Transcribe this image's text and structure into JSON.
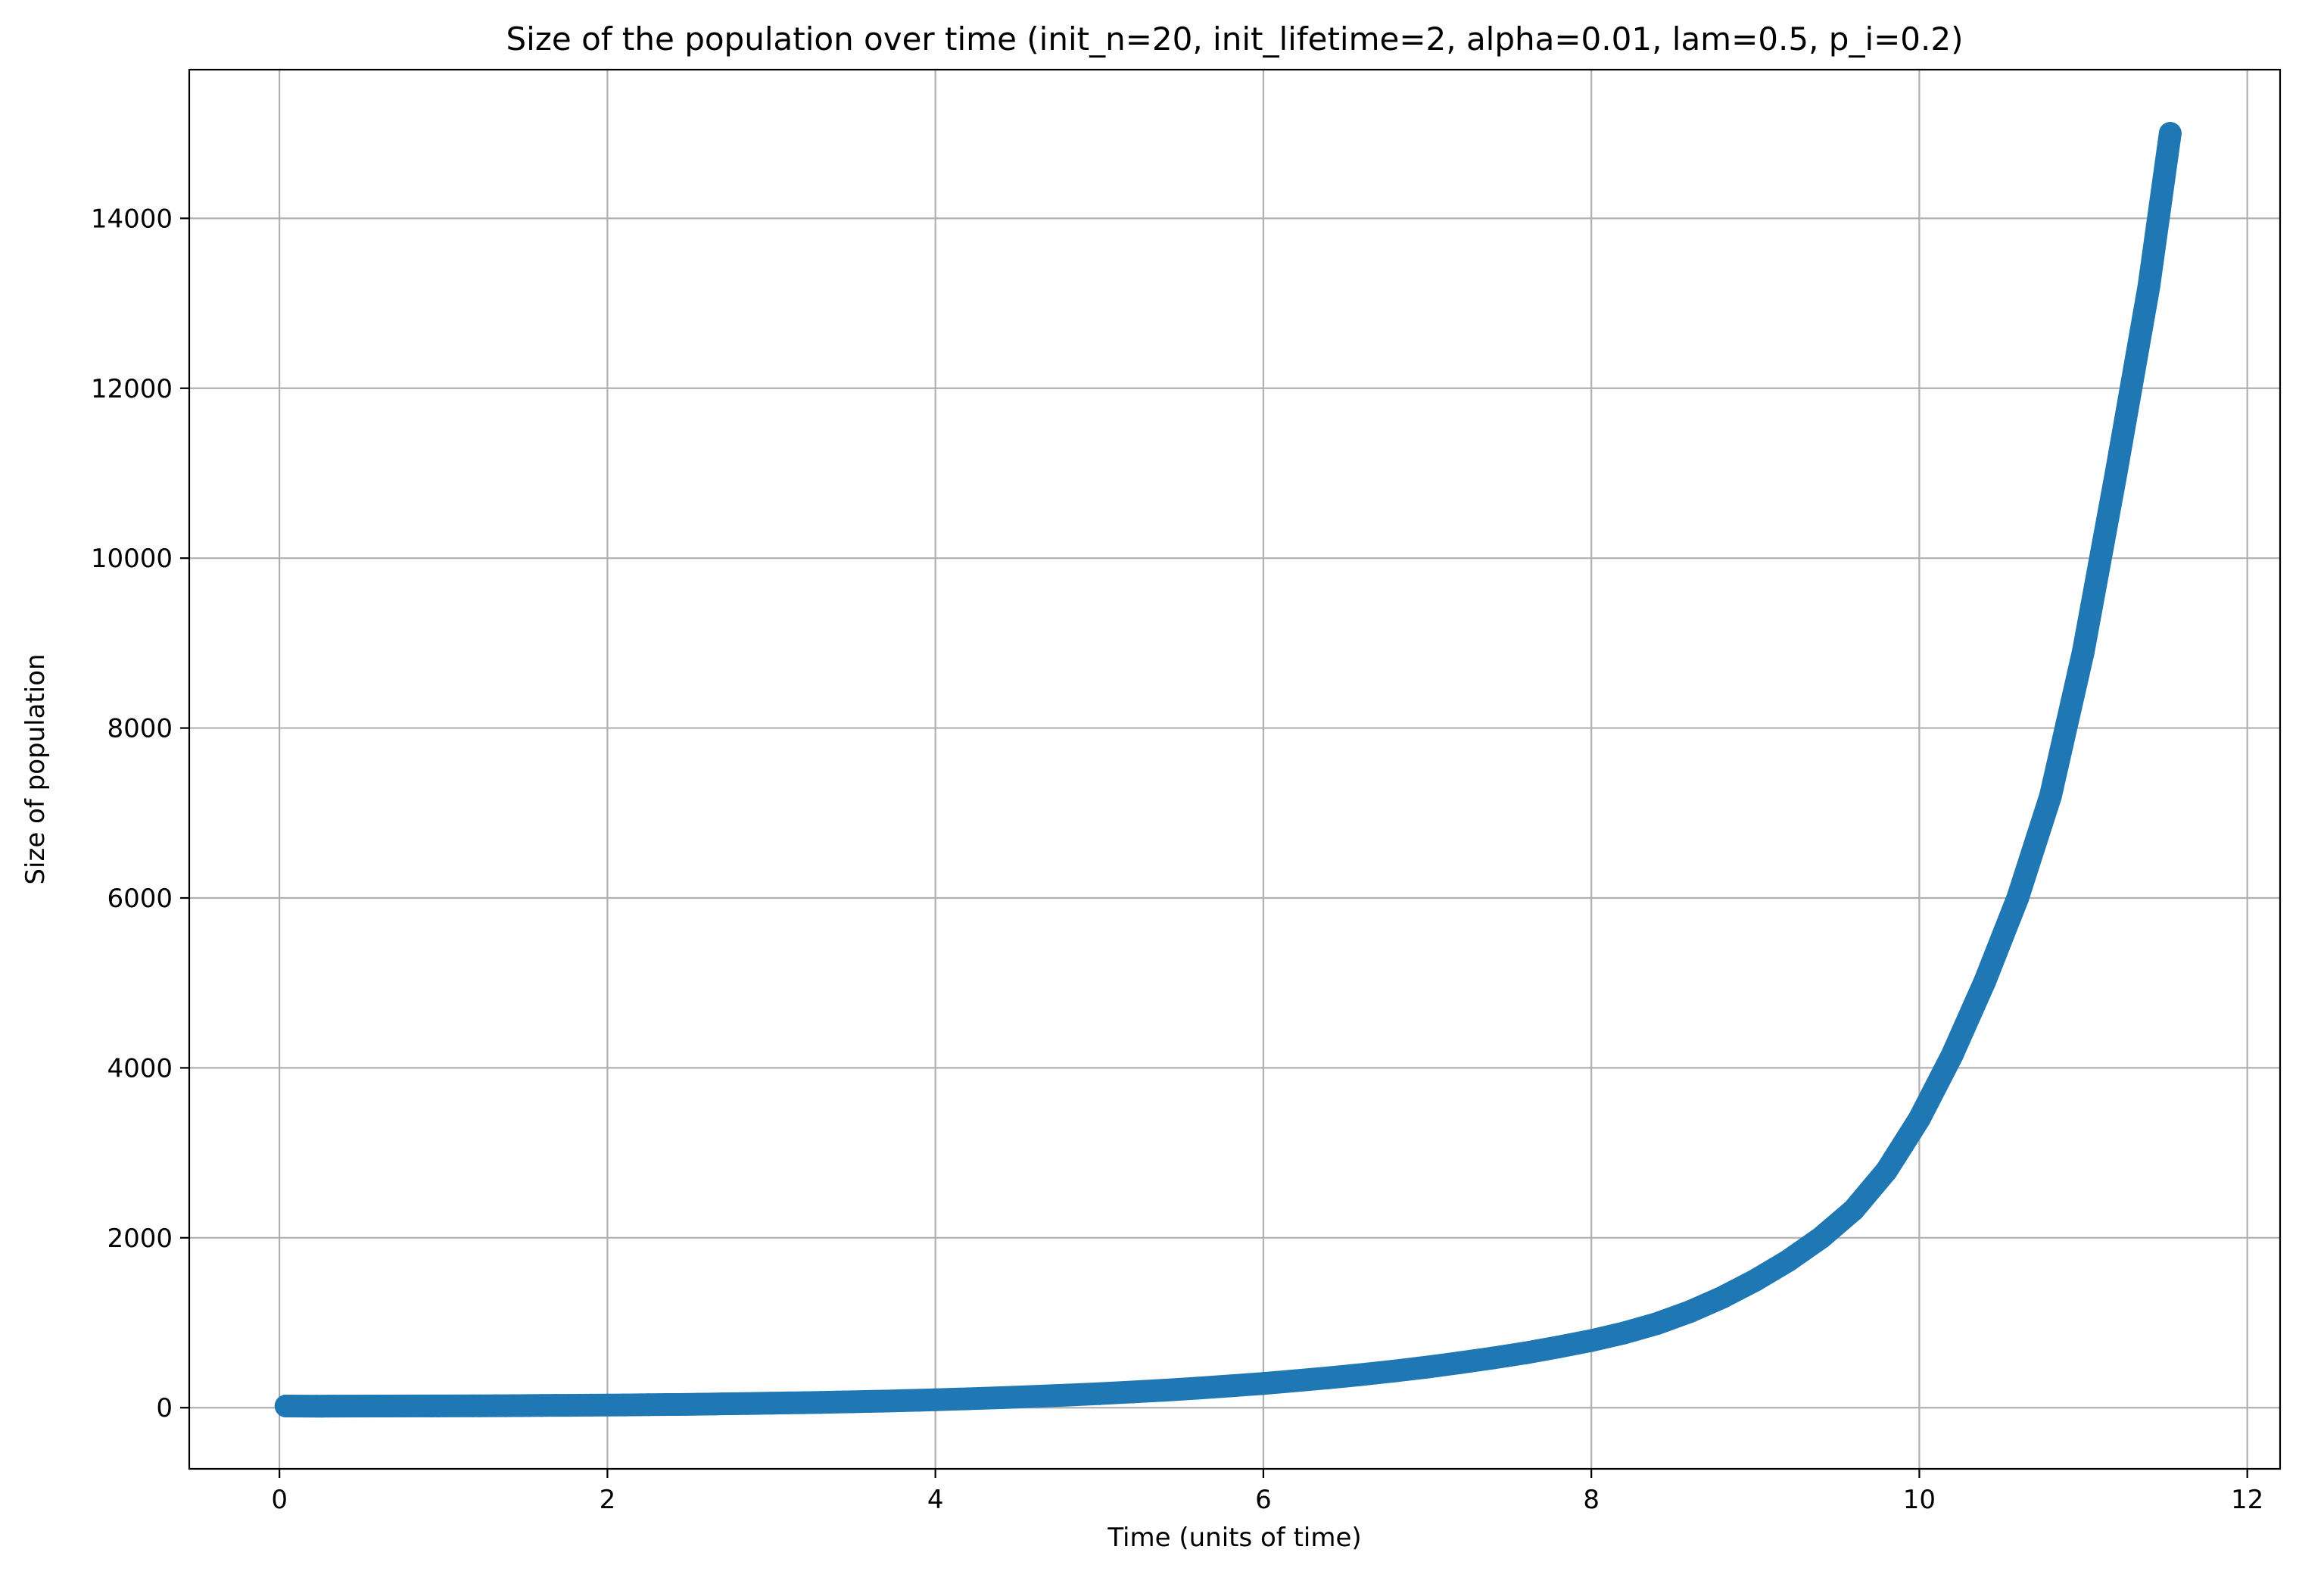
{
  "chart_data": {
    "type": "line",
    "title": "Size of the population over time (init_n=20, init_lifetime=2, alpha=0.01, lam=0.5, p_i=0.2)",
    "xlabel": "Time (units of time)",
    "ylabel": "Size of population",
    "xlim": [
      -0.55,
      12.2
    ],
    "ylim": [
      -720,
      15750
    ],
    "xticks": [
      0,
      2,
      4,
      6,
      8,
      10,
      12
    ],
    "yticks": [
      0,
      2000,
      4000,
      6000,
      8000,
      10000,
      12000,
      14000
    ],
    "grid": true,
    "series": [
      {
        "color": "#1f77b4",
        "marker": "circle",
        "x": [
          0.04,
          0.23,
          0.26,
          0.3,
          0.34,
          0.6,
          0.93,
          0.97,
          1.18,
          1.22,
          1.32,
          1.38,
          1.42,
          1.47,
          1.52,
          1.6,
          1.68,
          1.77,
          1.9,
          2.1,
          2.15,
          2.2,
          2.25,
          2.37,
          2.42,
          2.48,
          2.55,
          2.6,
          2.65,
          2.7,
          2.75,
          2.85,
          2.92,
          3.0,
          3.1,
          3.2,
          3.3,
          3.4,
          3.5,
          3.6,
          3.7,
          3.8,
          3.9,
          4.0,
          4.2,
          4.4,
          4.6,
          4.8,
          5.0,
          5.2,
          5.4,
          5.6,
          5.8,
          6.0,
          6.2,
          6.4,
          6.6,
          6.8,
          7.0,
          7.2,
          7.4,
          7.6,
          7.8,
          8.0,
          8.2,
          8.4,
          8.6,
          8.8,
          9.0,
          9.2,
          9.4,
          9.6,
          9.8,
          10.0,
          10.2,
          10.4,
          10.6,
          10.8,
          11.0,
          11.2,
          11.4,
          11.53
        ],
        "y": [
          20,
          18,
          18,
          19,
          19,
          20,
          21,
          21,
          22,
          22,
          23,
          23,
          24,
          24,
          25,
          26,
          27,
          28,
          30,
          32,
          33,
          34,
          35,
          37,
          38,
          39,
          41,
          42,
          43,
          45,
          46,
          49,
          51,
          53,
          56,
          59,
          62,
          66,
          70,
          74,
          78,
          83,
          88,
          93,
          105,
          118,
          132,
          148,
          165,
          185,
          206,
          230,
          257,
          285,
          318,
          352,
          390,
          432,
          478,
          530,
          585,
          645,
          715,
          790,
          880,
          990,
          1130,
          1300,
          1500,
          1730,
          2000,
          2330,
          2790,
          3400,
          4150,
          5020,
          6000,
          7200,
          8900,
          11000,
          13200,
          15000
        ]
      }
    ]
  }
}
